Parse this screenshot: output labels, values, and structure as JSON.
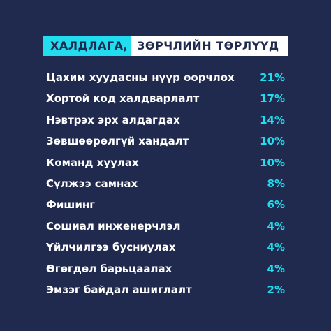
{
  "header": {
    "highlight": "ХАЛДЛАГА,",
    "title": "ЗӨРЧЛИЙН ТӨРЛҮҮД"
  },
  "table": {
    "rows": [
      [
        "Цахим хуудасны нүүр өөрчлөх",
        "21%"
      ],
      [
        "Хортой код халдварлалт",
        "17%"
      ],
      [
        "Нэвтрэх эрх алдагдах",
        "14%"
      ],
      [
        "Зөвшөөрөлгүй хандалт",
        "10%"
      ],
      [
        "Команд хуулах",
        "10%"
      ],
      [
        "Сүлжээ самнах",
        "8%"
      ],
      [
        "Фишинг",
        "6%"
      ],
      [
        "Сошиал инженерчлэл",
        "4%"
      ],
      [
        "Үйлчилгээ бусниулах",
        "4%"
      ],
      [
        "Өгөгдөл барьцаалах",
        "4%"
      ],
      [
        "Эмзэг байдал ашиглалт",
        "2%"
      ]
    ]
  }
}
